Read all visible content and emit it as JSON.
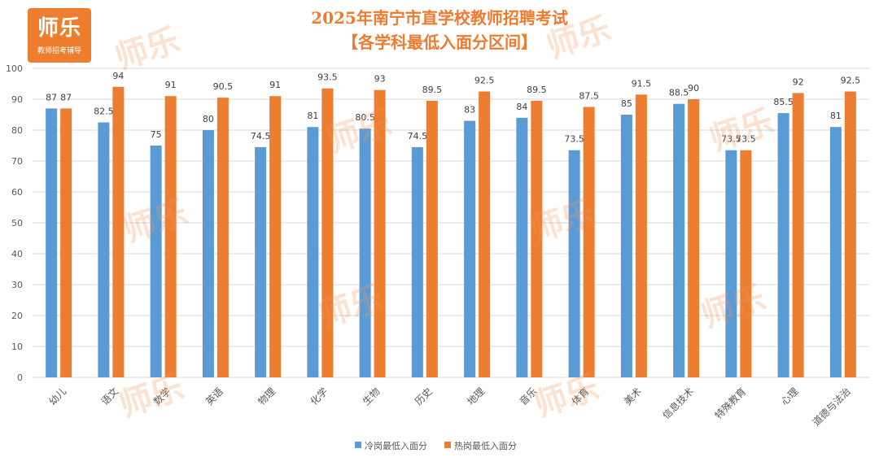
{
  "logo": {
    "brand": "师乐",
    "tagline": "教师招考辅导"
  },
  "watermark": "师乐",
  "colors": {
    "cold": "#5b9bd5",
    "hot": "#ed7d31",
    "title": "#ee7b2f",
    "grid": "#d9d9d9",
    "text": "#595959"
  },
  "chart_data": {
    "type": "bar",
    "title": "2025年南宁市直学校教师招聘考试",
    "subtitle": "【各学科最低入面分区间】",
    "categories": [
      "幼儿",
      "语文",
      "数学",
      "英语",
      "物理",
      "化学",
      "生物",
      "历史",
      "地理",
      "音乐",
      "体育",
      "美术",
      "信息技术",
      "特殊教育",
      "心理",
      "道德与法治"
    ],
    "series": [
      {
        "name": "冷岗最低入面分",
        "values": [
          87,
          82.5,
          75,
          80,
          74.5,
          81,
          80.5,
          74.5,
          83,
          84,
          73.5,
          85,
          88.5,
          73.5,
          85.5,
          81
        ]
      },
      {
        "name": "热岗最低入面分",
        "values": [
          87,
          94,
          91,
          90.5,
          91,
          93.5,
          93,
          89.5,
          92.5,
          89.5,
          87.5,
          91.5,
          90,
          73.5,
          92,
          92.5
        ]
      }
    ],
    "ylim": [
      0,
      100
    ],
    "yticks": [
      0,
      10,
      20,
      30,
      40,
      50,
      60,
      70,
      80,
      90,
      100
    ],
    "xlabel": "",
    "ylabel": "",
    "grid": true,
    "legend": "bottom-center"
  }
}
